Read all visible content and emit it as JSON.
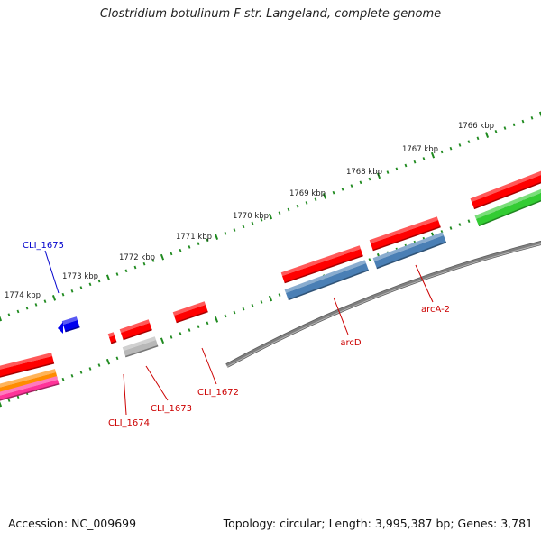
{
  "title": "Clostridium botulinum F str. Langeland, complete genome",
  "footer": {
    "accession": "Accession: NC_009699",
    "summary": "Topology: circular; Length: 3,995,387 bp; Genes: 3,781"
  },
  "colors": {
    "backbone": "#7f7f7f",
    "ticks": "#1f8a1f",
    "cds_red": "#ff0000",
    "cds_blue_steel": "#4a7fb5",
    "cds_gray": "#b8b8b8",
    "cds_blue": "#0000ee",
    "cds_green": "#33cc33",
    "cds_orange": "#ff8c00",
    "cds_pink": "#ff3399",
    "label_red": "#cc0000",
    "label_blue": "#0000cc"
  },
  "scale_labels": [
    "1774 kbp",
    "1773 kbp",
    "1772 kbp",
    "1771 kbp",
    "1770 kbp",
    "1769 kbp",
    "1768 kbp",
    "1767 kbp",
    "1766 kbp"
  ],
  "gene_labels": [
    {
      "text": "CLI_1675",
      "color": "label_blue"
    },
    {
      "text": "CLI_1674",
      "color": "label_red"
    },
    {
      "text": "CLI_1673",
      "color": "label_red"
    },
    {
      "text": "CLI_1672",
      "color": "label_red"
    },
    {
      "text": "arcD",
      "color": "label_red"
    },
    {
      "text": "arcA-2",
      "color": "label_red"
    }
  ]
}
